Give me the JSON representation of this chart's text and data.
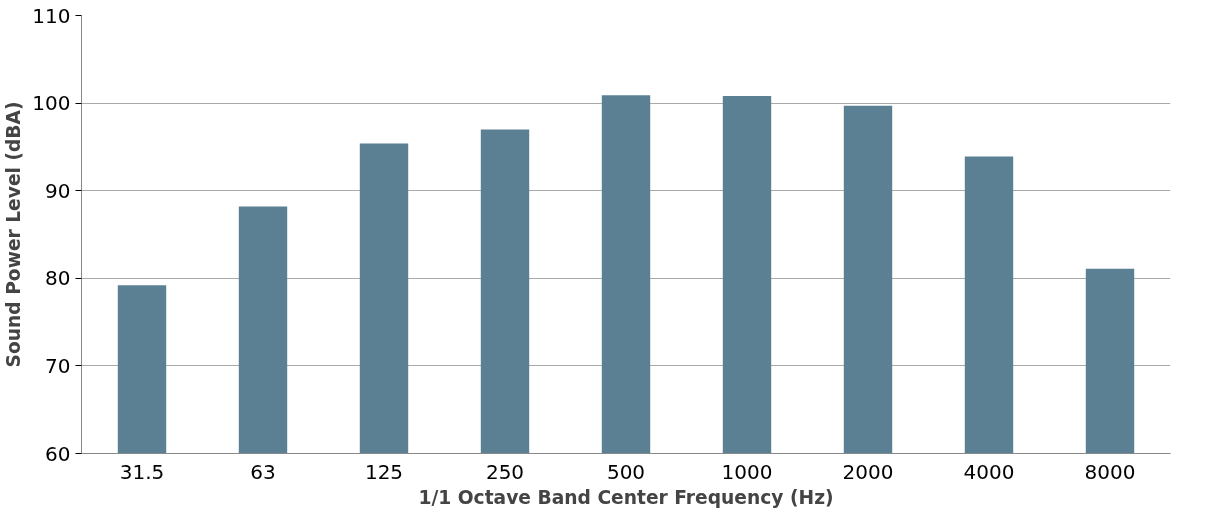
{
  "chart_data": {
    "type": "bar",
    "xlabel": "1/1 Octave Band Center Frequency (Hz)",
    "ylabel": "Sound Power Level (dBA)",
    "categories": [
      "31.5",
      "63",
      "125",
      "250",
      "500",
      "1000",
      "2000",
      "4000",
      "8000"
    ],
    "series": [
      {
        "color": "#5b7f93",
        "values": [
          79.2,
          88.2,
          95.4,
          97.0,
          100.9,
          100.8,
          99.7,
          93.9,
          81.1
        ]
      }
    ],
    "ylim": [
      60,
      110
    ],
    "yticks": [
      60,
      70,
      80,
      90,
      100,
      110
    ],
    "grid": "y"
  }
}
